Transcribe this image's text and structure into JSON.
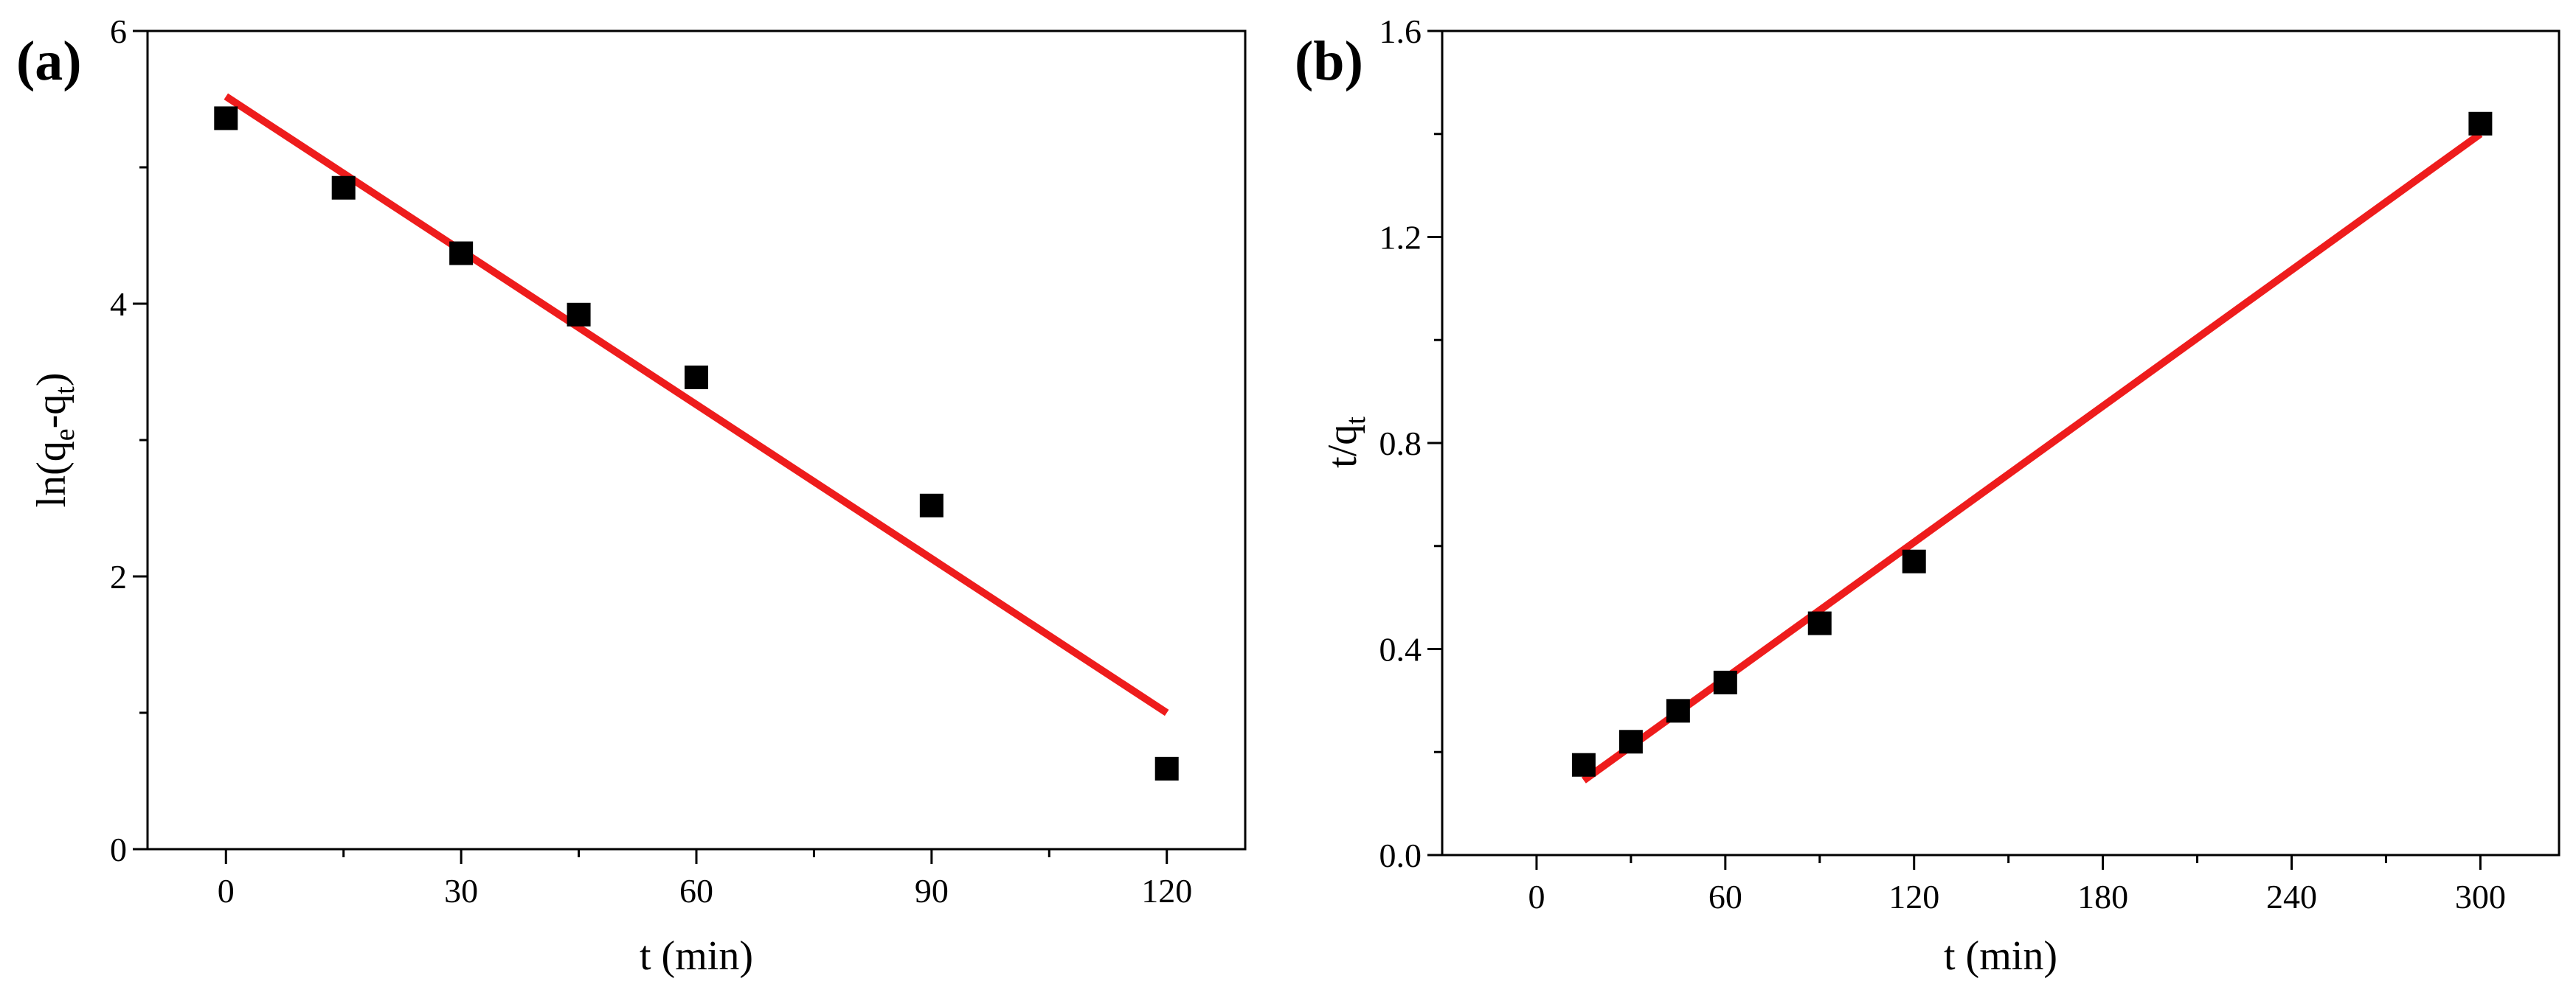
{
  "chart_data": [
    {
      "type": "scatter",
      "panel_label": "(a)",
      "title": "",
      "xlabel": "t (min)",
      "ylabel": {
        "prefix": "ln(q",
        "sub1": "e",
        "mid": "-q",
        "sub2": "t",
        "suffix": ")"
      },
      "xlim": [
        -10,
        130
      ],
      "ylim": [
        0,
        6
      ],
      "xticks": [
        0,
        30,
        60,
        90,
        120
      ],
      "yticks": [
        0,
        2,
        4,
        6
      ],
      "xminor": [
        15,
        45,
        75,
        105
      ],
      "yminor": [
        1,
        3,
        5
      ],
      "grid": false,
      "series": [
        {
          "name": "data",
          "marker": "square",
          "color": "#000000",
          "x": [
            0,
            15,
            30,
            45,
            60,
            90,
            120
          ],
          "y": [
            5.36,
            4.85,
            4.37,
            3.92,
            3.46,
            2.52,
            0.59
          ]
        },
        {
          "name": "fit",
          "line": true,
          "color": "#ee1c1c",
          "x": [
            0,
            120
          ],
          "y": [
            5.52,
            1.0
          ]
        }
      ]
    },
    {
      "type": "scatter",
      "panel_label": "(b)",
      "title": "",
      "xlabel": "t (min)",
      "ylabel": {
        "prefix": "t/q",
        "sub1": "t",
        "mid": "",
        "sub2": "",
        "suffix": ""
      },
      "xlim": [
        -30,
        325
      ],
      "ylim": [
        0,
        1.6
      ],
      "xticks": [
        0,
        60,
        120,
        180,
        240,
        300
      ],
      "yticks": [
        0.0,
        0.4,
        0.8,
        1.2,
        1.6
      ],
      "ytick_labels": [
        "0.0",
        "0.4",
        "0.8",
        "1.2",
        "1.6"
      ],
      "xminor": [
        30,
        90,
        150,
        210,
        270
      ],
      "yminor": [
        0.2,
        0.6,
        1.0,
        1.4
      ],
      "grid": false,
      "series": [
        {
          "name": "data",
          "marker": "square",
          "color": "#000000",
          "x": [
            15,
            30,
            45,
            60,
            90,
            120,
            300
          ],
          "y": [
            0.175,
            0.22,
            0.28,
            0.335,
            0.45,
            0.57,
            1.42
          ]
        },
        {
          "name": "fit",
          "line": true,
          "color": "#ee1c1c",
          "x": [
            15,
            300
          ],
          "y": [
            0.145,
            1.4
          ]
        }
      ]
    }
  ]
}
